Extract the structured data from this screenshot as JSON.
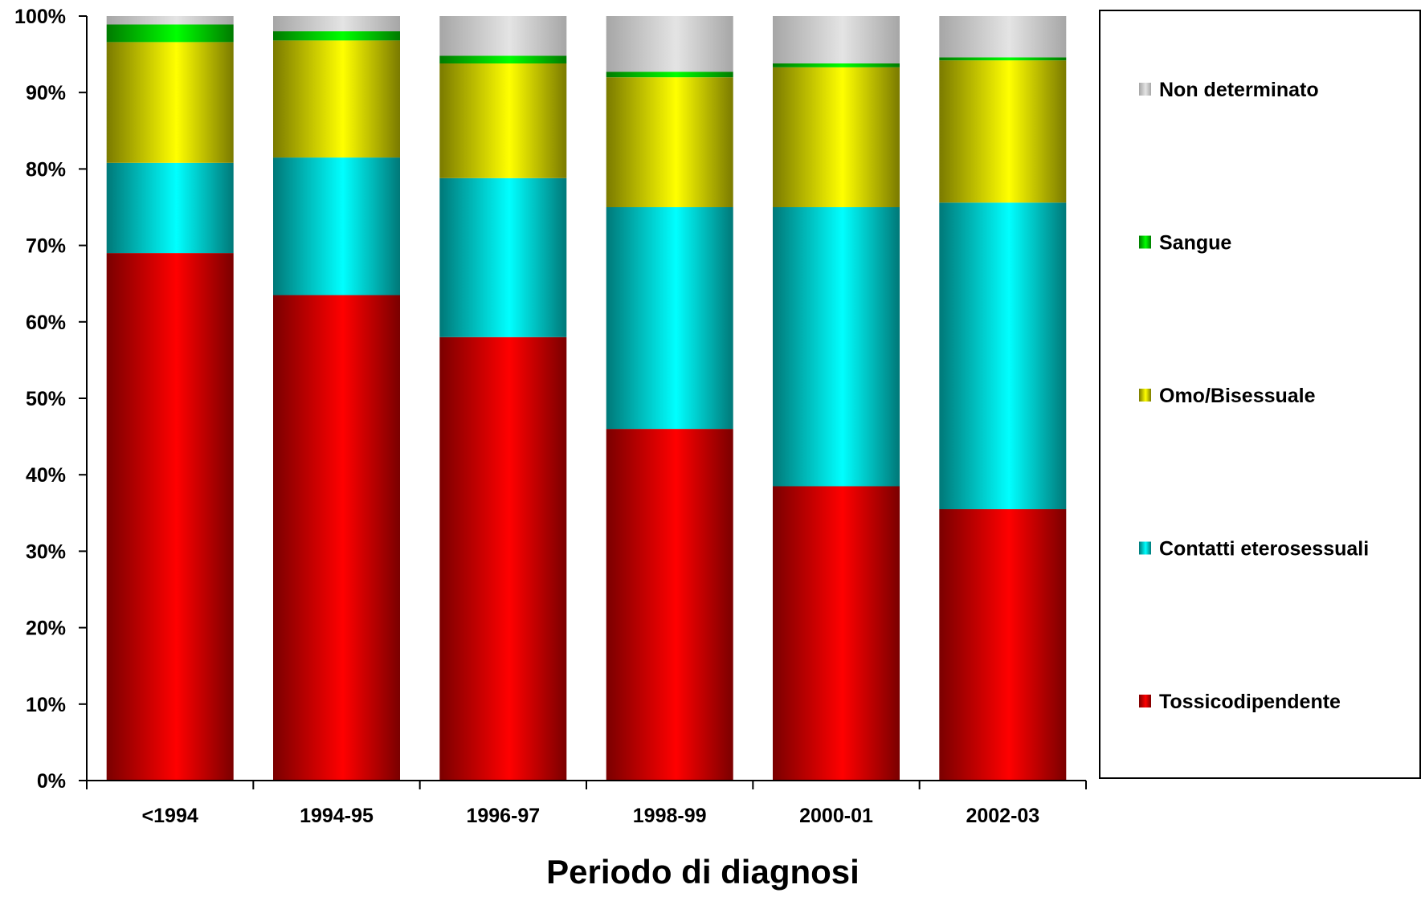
{
  "chart_data": {
    "type": "bar",
    "stacked": true,
    "normalized": true,
    "title": "",
    "xlabel": "Periodo di diagnosi",
    "ylabel": "",
    "ylim": [
      0,
      100
    ],
    "y_ticks": [
      "0%",
      "10%",
      "20%",
      "30%",
      "40%",
      "50%",
      "60%",
      "70%",
      "80%",
      "90%",
      "100%"
    ],
    "categories": [
      "<1994",
      "1994-95",
      "1996-97",
      "1998-99",
      "2000-01",
      "2002-03"
    ],
    "series": [
      {
        "name": "Tossicodipendente",
        "values": [
          69.0,
          63.5,
          58.0,
          46.0,
          38.5,
          35.5
        ],
        "color": "#ff0000",
        "shade": "#7a0000"
      },
      {
        "name": "Contatti eterosessuali",
        "values": [
          11.8,
          18.0,
          20.8,
          29.0,
          36.5,
          40.1
        ],
        "color": "#00ffff",
        "shade": "#007878"
      },
      {
        "name": "Omo/Bisessuale",
        "values": [
          15.8,
          15.3,
          15.0,
          17.0,
          18.3,
          18.6
        ],
        "color": "#ffff00",
        "shade": "#7a7a00"
      },
      {
        "name": "Sangue",
        "values": [
          2.3,
          1.2,
          1.0,
          0.7,
          0.5,
          0.4
        ],
        "color": "#00ff00",
        "shade": "#007a00"
      },
      {
        "name": "Non determinato",
        "values": [
          1.1,
          2.0,
          5.2,
          7.3,
          6.2,
          5.4
        ],
        "color": "#e4e4e4",
        "shade": "#a6a6a6"
      }
    ],
    "legend_position": "right",
    "legend_order": [
      "Non determinato",
      "Sangue",
      "Omo/Bisessuale",
      "Contatti eterosessuali",
      "Tossicodipendente"
    ],
    "grid": false
  }
}
